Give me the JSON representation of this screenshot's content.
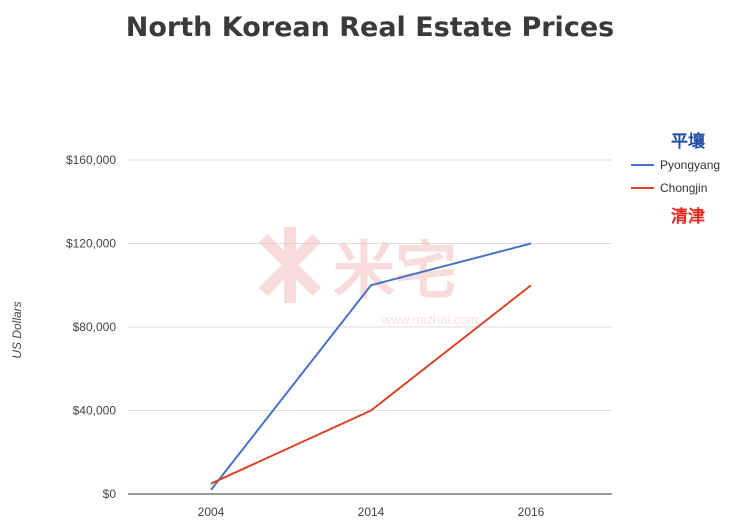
{
  "chart_data": {
    "type": "line",
    "title": "North Korean Real Estate Prices",
    "xlabel": "",
    "ylabel": "US Dollars",
    "categories": [
      "2004",
      "2014",
      "2016"
    ],
    "series": [
      {
        "name": "Pyongyang",
        "values": [
          2000,
          100000,
          120000
        ],
        "color": "#4a72c4"
      },
      {
        "name": "Chongjin",
        "values": [
          5000,
          40000,
          100000
        ],
        "color": "#d9452b"
      }
    ],
    "ylim": [
      0,
      160000
    ],
    "yticks": [
      {
        "value": 0,
        "label": "$0"
      },
      {
        "value": 40000,
        "label": "$40,000"
      },
      {
        "value": 80000,
        "label": "$80,000"
      },
      {
        "value": 120000,
        "label": "$120,000"
      },
      {
        "value": 160000,
        "label": "$160,000"
      }
    ],
    "grid": true,
    "legend_position": "right"
  },
  "legend_annotations": {
    "pyongyang_cjk": "平壤",
    "chongjin_cjk": "清津"
  },
  "colors": {
    "pyongyang_cjk": "#1f4fa8",
    "chongjin_cjk": "#e0261f",
    "grid": "#dddddd",
    "axis": "#333333"
  },
  "watermark": {
    "brand": "米宅",
    "url": "www.mizhai.com"
  }
}
